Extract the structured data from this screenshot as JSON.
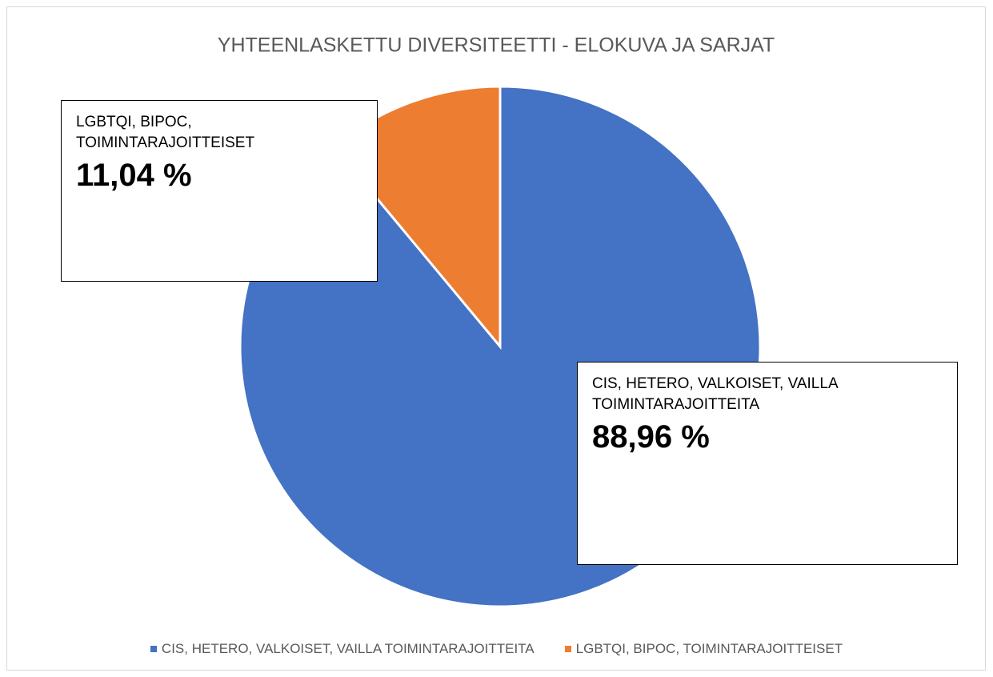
{
  "chart_data": {
    "type": "pie",
    "title": "YHTEENLASKETTU DIVERSITEETTI - ELOKUVA JA SARJAT",
    "categories": [
      "CIS, HETERO, VALKOISET, VAILLA TOIMINTARAJOITTEITA",
      "LGBTQI, BIPOC, TOIMINTARAJOITTEISET"
    ],
    "values": [
      88.96,
      11.04
    ],
    "value_labels": [
      "88,96 %",
      "11,04 %"
    ],
    "colors": [
      "#4472c4",
      "#ed7d31"
    ],
    "legend": "bottom"
  }
}
